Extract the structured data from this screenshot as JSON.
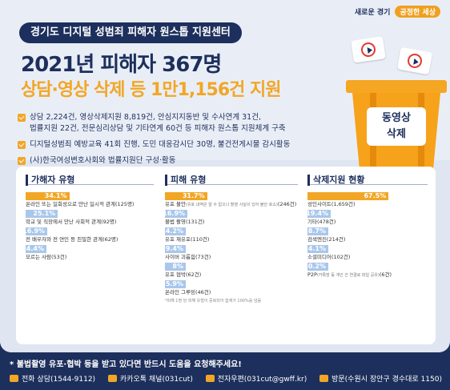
{
  "brand": {
    "left": "새로운 경기",
    "right": "공정한 세상"
  },
  "title_pill": "경기도 디지털 성범죄 피해자 원스톱 지원센터",
  "headline": "2021년 피해자 367명",
  "subline": "상담·영상 삭제 등 1만1,156건 지원",
  "bullets": [
    "상담 2,224건, 영상삭제지원 8,819건, 안심지지동반 및 수사연계 31건,",
    "법률지원 22건, 전문심리상담 및 기타연계 60건 등 피해자 원스톱 지원체계 구축",
    "디지털성범죄 예방교육 41회 진행, 도민 대응감시단 30명, 불건전게시물 감시활동",
    "(사)한국여성변호사회와 법률지원단 구성·활동"
  ],
  "bin_label": [
    "동영상",
    "삭제"
  ],
  "colors": {
    "navy": "#1d2f5c",
    "orange": "#f2a626",
    "blue": "#a9c7eb"
  },
  "chart_data": [
    {
      "type": "bar",
      "title": "가해자 유형",
      "categories": [
        "온라인 또는 일회성으로 만난 일시적 관계",
        "학교 및 직장에서 만난 사회적 관계",
        "전 배우자와 전 연인 등 친밀한 관계",
        "모르는 사람"
      ],
      "counts": [
        "(125명)",
        "(92명)",
        "(62명)",
        "(53건)"
      ],
      "values": [
        34.1,
        25.1,
        16.9,
        14.4
      ],
      "labels": [
        "34.1%",
        "25.1%",
        "16.9%",
        "14.4%"
      ]
    },
    {
      "type": "bar",
      "title": "피해 유형",
      "categories": [
        "유포 불안",
        "불법 촬영",
        "유포 재유포",
        "사이버 괴롭힘",
        "유포 협박",
        "온라인 그루밍"
      ],
      "counts": [
        "(246건)",
        "(131건)",
        "(110건)",
        "(73건)",
        "(62건)",
        "(46건)"
      ],
      "first_sub": "(유포 내역은 알 수 없으나 촬영 사실이 있어 불안 호소)",
      "values": [
        31.7,
        16.9,
        14.2,
        9.4,
        8,
        5.9
      ],
      "labels": [
        "31.7%",
        "16.9%",
        "14.2%",
        "9.4%",
        "8%",
        "5.9%"
      ],
      "note": "*피해 1명 당 피해 유형이 중복되어 합계가 100%를 넘음"
    },
    {
      "type": "bar",
      "title": "삭제지원 현황",
      "categories": [
        "성인사이트",
        "기타",
        "검색엔진",
        "소셜미디어",
        "P2P"
      ],
      "counts": [
        "(1,659건)",
        "(478건)",
        "(214건)",
        "(102건)",
        "(6건)"
      ],
      "last_sub": "(카톡방 등 개인 간 연결로 파일 공유)",
      "values": [
        67.5,
        19.4,
        8.7,
        4.1,
        0.2
      ],
      "labels": [
        "67.5%",
        "19.4%",
        "8.7%",
        "4.1%",
        "0.2%"
      ]
    }
  ],
  "footer": {
    "notice": "* 불법촬영 유포·협박 등을 받고 있다면 반드시 도움을 요청해주세요!",
    "contacts": [
      "전화 상담(1544-9112)",
      "카카오톡 채널(031cut)",
      "전자우편(031cut@gwff.kr)",
      "방문(수원시 장안구 경수대로 1150)"
    ]
  }
}
